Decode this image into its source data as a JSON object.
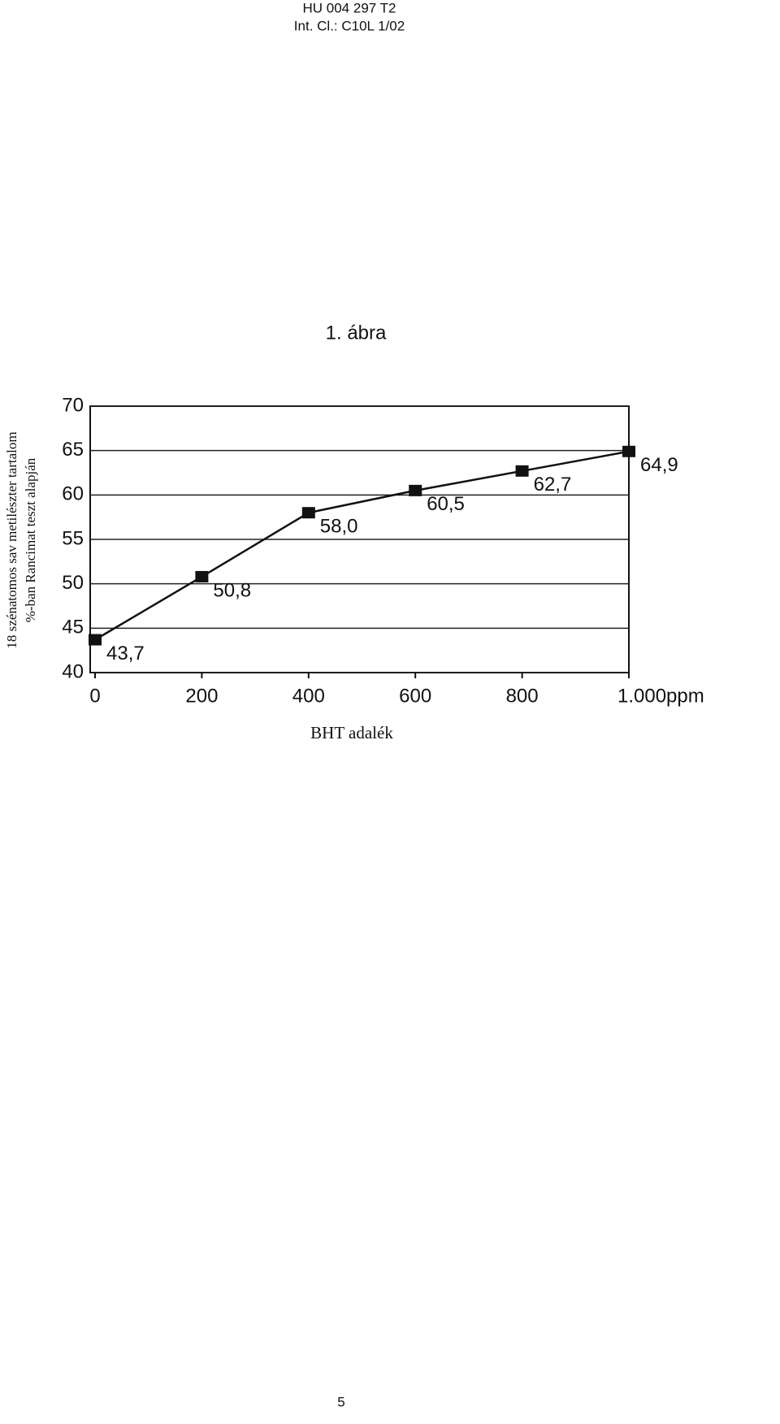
{
  "header": {
    "document_id": "HU 004 297 T2",
    "classification": "Int. Cl.: C10L 1/02"
  },
  "chart_data": {
    "type": "line",
    "title": "1. ábra",
    "y_label": [
      "18 szénatomos sav metilészter tartalom",
      "%-ban Rancimat teszt alapján"
    ],
    "x_label": "BHT adalék",
    "x": [
      0,
      200,
      400,
      600,
      800,
      1000
    ],
    "series": [
      {
        "color": "#111111",
        "values": [
          43.7,
          50.8,
          58.0,
          60.5,
          62.7,
          64.9
        ],
        "value_labels": [
          "43,7",
          "50,8",
          "58,0",
          "60,5",
          "62,7",
          "64,9"
        ]
      }
    ],
    "xlim": [
      0,
      1000
    ],
    "ylim": [
      40,
      70
    ],
    "xticks": [
      0,
      200,
      400,
      600,
      800,
      {
        "value": 1000,
        "label": "1.000ppm"
      }
    ],
    "yticks": [
      40,
      45,
      50,
      55,
      60,
      65,
      70
    ],
    "grid": true
  },
  "page_number": "5"
}
